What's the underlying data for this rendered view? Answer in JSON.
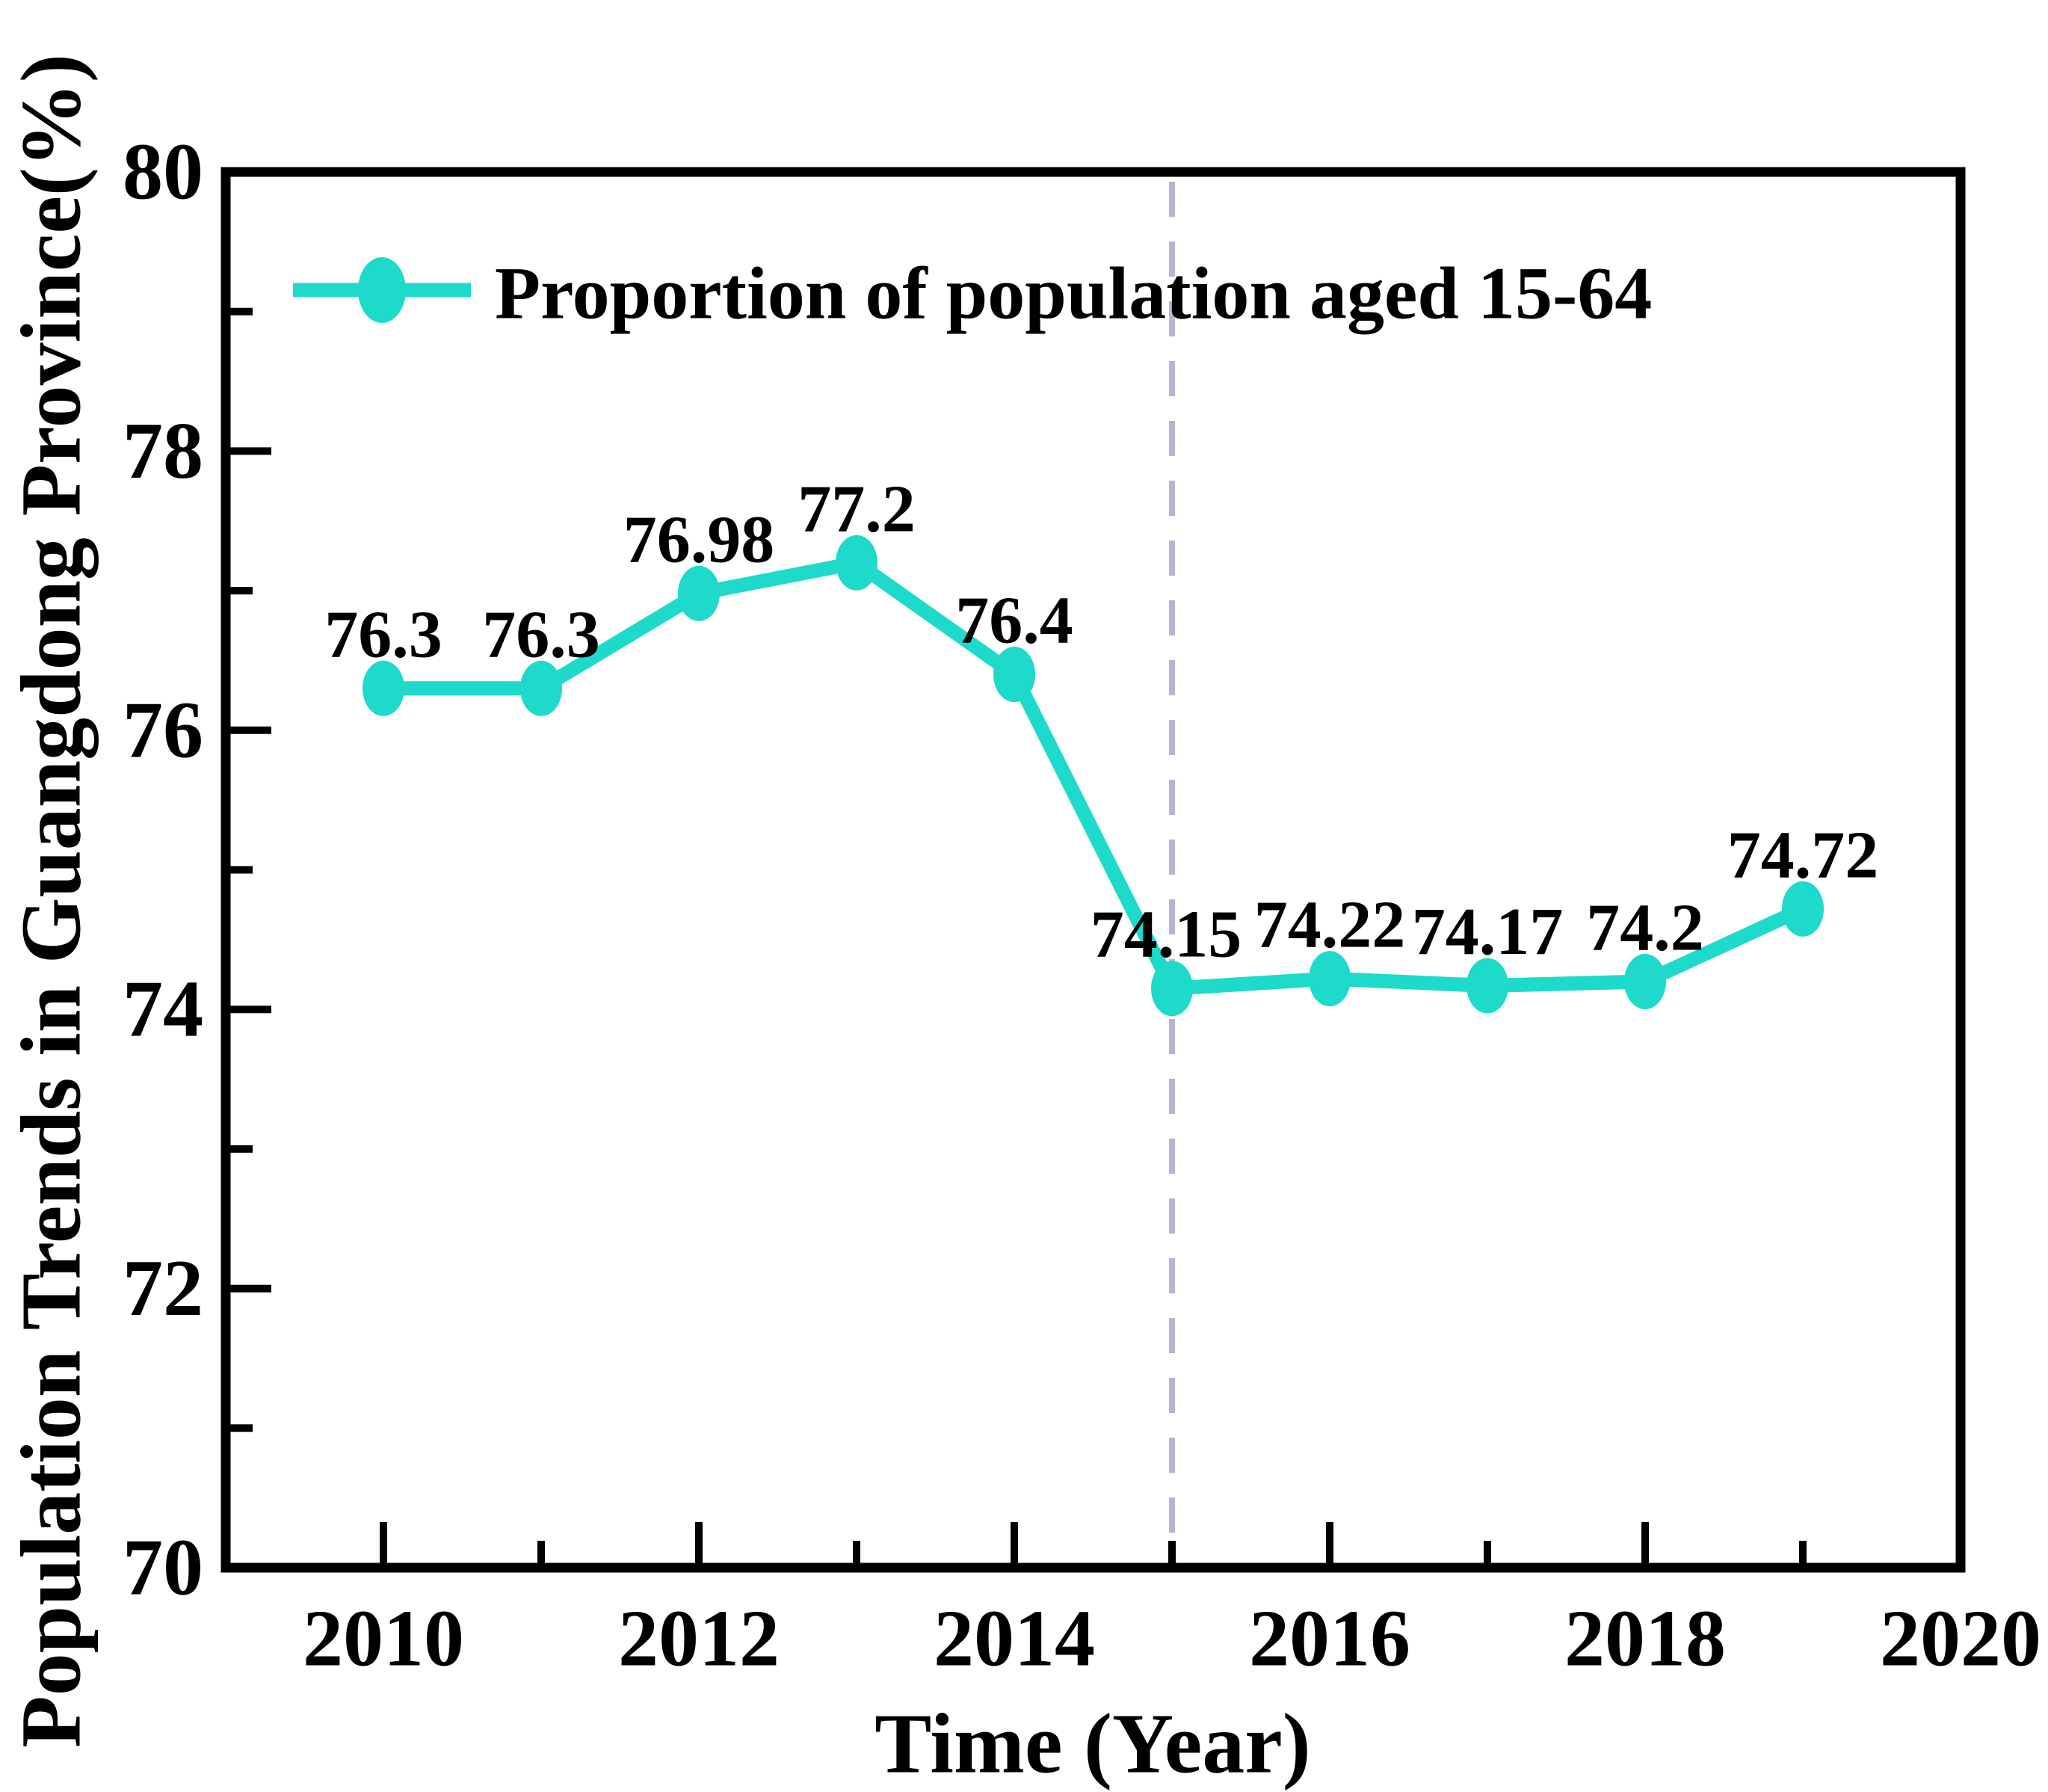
{
  "figure": {
    "background": "#ffffff"
  },
  "chart_data": {
    "type": "line",
    "title": "",
    "xlabel": "Time (Year)",
    "ylabel": "Population Trends in Guangdong Province(%)",
    "legend": [
      "Proportion of population aged 15-64"
    ],
    "legend_position": "top-left-inside",
    "x": [
      2010,
      2011,
      2012,
      2013,
      2014,
      2015,
      2016,
      2017,
      2018,
      2019
    ],
    "series": [
      {
        "name": "Proportion of population aged 15-64",
        "values": [
          76.3,
          76.3,
          76.98,
          77.2,
          76.4,
          74.15,
          74.22,
          74.17,
          74.2,
          74.72
        ]
      }
    ],
    "point_labels": [
      "76.3",
      "76.3",
      "76.98",
      "77.2",
      "76.4",
      "74.15",
      "74.22",
      "74.17",
      "74.2",
      "74.72"
    ],
    "xlim": [
      2009,
      2020
    ],
    "ylim": [
      70,
      80
    ],
    "x_major_ticks": [
      2010,
      2012,
      2014,
      2016,
      2018,
      2020
    ],
    "x_minor_ticks": [
      2011,
      2013,
      2015,
      2017,
      2019
    ],
    "y_major_ticks": [
      70,
      72,
      74,
      76,
      78,
      80
    ],
    "y_minor_ticks": [
      71,
      73,
      75,
      77,
      79
    ],
    "reference_line_x": 2015,
    "grid": false,
    "marker": "ellipse",
    "colors": {
      "line": "#1EDACA",
      "marker": "#1EDACA",
      "reference_line": "#B7B4D3",
      "axis": "#000000",
      "text": "#000000"
    }
  }
}
